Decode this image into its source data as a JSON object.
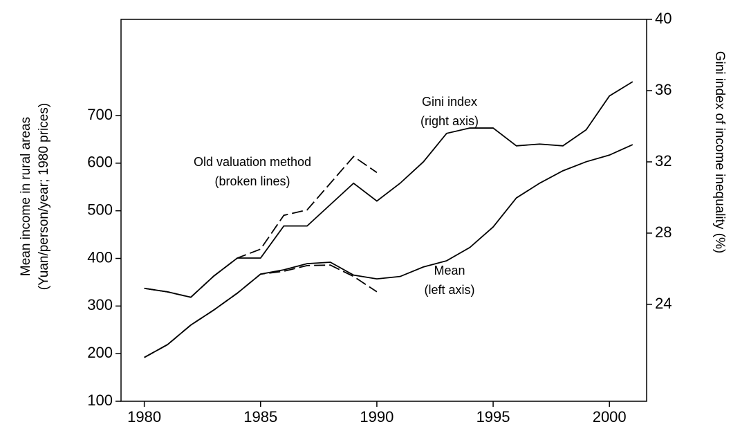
{
  "chart_data": {
    "type": "line",
    "x": [
      1980,
      1981,
      1982,
      1983,
      1984,
      1985,
      1986,
      1987,
      1988,
      1989,
      1990,
      1991,
      1992,
      1993,
      1994,
      1995,
      1996,
      1997,
      1998,
      1999,
      2000,
      2001
    ],
    "y_label": [
      "Mean income in rural areas",
      "(Yuan/person/year; 1980 prices)"
    ],
    "y2_label": "Gini index of income inequality (%)",
    "series": [
      {
        "color": "#000000",
        "dash": false,
        "axis": "y",
        "values": [
          192,
          219,
          260,
          292,
          327,
          367,
          376,
          389,
          392,
          365,
          357,
          362,
          382,
          395,
          423,
          466,
          527,
          558,
          584,
          603,
          617,
          639
        ]
      },
      {
        "color": "#000000",
        "dash": true,
        "axis": "y",
        "values": [
          192,
          219,
          260,
          292,
          327,
          367,
          373,
          385,
          386,
          362,
          330,
          null,
          null,
          null,
          null,
          null,
          null,
          null,
          null,
          null,
          null,
          null
        ]
      },
      {
        "color": "#000000",
        "dash": false,
        "axis": "y2",
        "values": [
          24.9,
          24.7,
          24.4,
          25.6,
          26.6,
          26.6,
          28.4,
          28.4,
          29.6,
          30.8,
          29.8,
          30.8,
          32.0,
          33.6,
          33.9,
          33.9,
          32.9,
          33.0,
          32.9,
          33.8,
          35.7,
          36.5
        ]
      },
      {
        "color": "#000000",
        "dash": true,
        "axis": "y2",
        "values": [
          24.9,
          24.7,
          24.4,
          25.6,
          26.6,
          27.1,
          29.0,
          29.3,
          30.8,
          32.3,
          31.4,
          null,
          null,
          null,
          null,
          null,
          null,
          null,
          null,
          null,
          null,
          null
        ]
      }
    ],
    "annotations": [
      [
        "Gini index",
        "(right axis)"
      ],
      [
        "Old valuation method",
        "(broken lines)"
      ],
      [
        "Mean",
        "(left axis)"
      ]
    ],
    "xlim": [
      1979,
      2001.6
    ],
    "xticks": [
      1980,
      1985,
      1990,
      1995,
      2000
    ],
    "ylim": [
      100,
      902
    ],
    "yticks": [
      100,
      200,
      300,
      400,
      500,
      600,
      700
    ],
    "y2lim": [
      18.56,
      40
    ],
    "y2ticks": [
      24,
      28,
      32,
      36,
      40
    ]
  }
}
